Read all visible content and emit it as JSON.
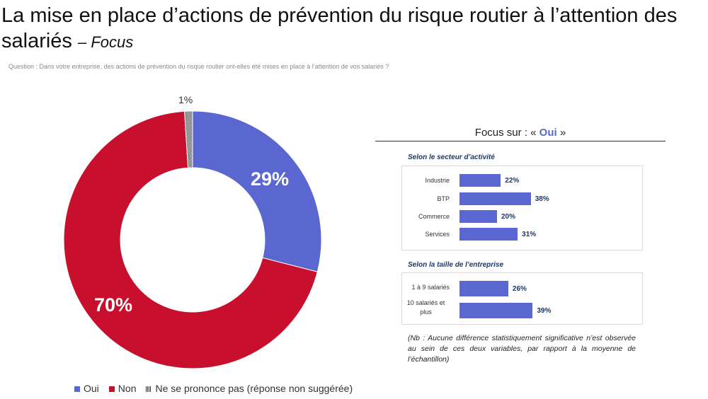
{
  "title": "La mise en place d’actions de prévention du risque routier à l’attention des salariés",
  "title_suffix": "– Focus",
  "question": "Question : Dans votre entreprise, des actions de prévention du risque routier ont-elles été mises en place à l’attention de vos salariés ?",
  "chart_data": [
    {
      "type": "pie",
      "subtype": "donut",
      "categories": [
        "Oui",
        "Non",
        "Ne se prononce pas (réponse non suggérée)"
      ],
      "values": [
        29,
        70,
        1
      ],
      "labels": [
        "29%",
        "70%",
        "1%"
      ],
      "colors": [
        "#5b67d0",
        "#c8102e",
        "#888888"
      ],
      "legend": "bottom"
    },
    {
      "type": "bar",
      "orientation": "horizontal",
      "title": "Selon le secteur d’activité",
      "categories": [
        "Industrie",
        "BTP",
        "Commerce",
        "Services"
      ],
      "values": [
        22,
        38,
        20,
        31
      ],
      "labels": [
        "22%",
        "38%",
        "20%",
        "31%"
      ],
      "color": "#5b67d0"
    },
    {
      "type": "bar",
      "orientation": "horizontal",
      "title": "Selon la taille de l’entreprise",
      "categories": [
        "1 à 9 salariés",
        "10 salariés et plus"
      ],
      "values": [
        26,
        39
      ],
      "labels": [
        "26%",
        "39%"
      ],
      "color": "#5b67d0"
    }
  ],
  "focus": {
    "prefix": "Focus sur : «",
    "highlight": "Oui",
    "suffix": "»"
  },
  "note": "(Nb : Aucune différence statistiquement significative n’est observée au sein de ces deux variables, par rapport à la moyenne de l’échantillon)"
}
